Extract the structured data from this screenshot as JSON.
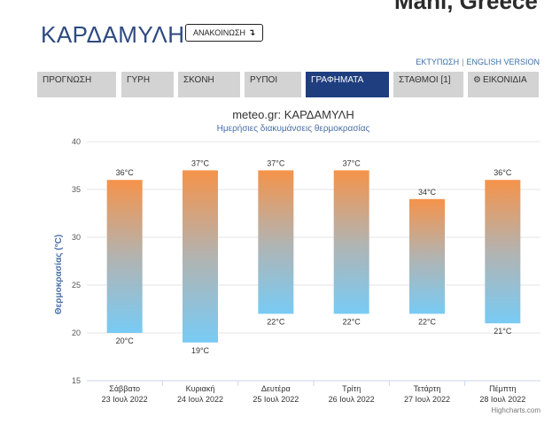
{
  "header": {
    "corner_text": "Mani, Greece",
    "title": "ΚΑΡΔΑΜΥΛΗ",
    "announce_label": "ΑΝΑΚΟΙΝΩΣΗ",
    "announce_icon": "return-arrow-icon",
    "print_link": "ΕΚΤΥΠΩΣΗ",
    "english_link": "ENGLISH VERSION"
  },
  "nav": {
    "tabs": [
      {
        "label": "ΠΡΟΓΝΩΣΗ",
        "active": false
      },
      {
        "label": "ΓΥΡΗ",
        "active": false
      },
      {
        "label": "ΣΚΟΝΗ",
        "active": false
      },
      {
        "label": "ΡΥΠΟΙ",
        "active": false
      },
      {
        "label": "ΓΡΑΦΗΜΑΤΑ",
        "active": true
      },
      {
        "label": "ΣΤΑΘΜΟΙ [1]",
        "active": false
      },
      {
        "label": "ΕΙΚΟΝΙΔΙΑ",
        "active": false,
        "icon": "gear-icon"
      }
    ]
  },
  "chart_data": {
    "type": "bar",
    "subtype": "columnrange",
    "title": "meteo.gr: ΚΑΡΔΑΜΥΛΗ",
    "subtitle": "Ημερήσιες διακυμάνσεις θερμοκρασίας",
    "ylabel": "Θερμοκρασίας (°C)",
    "ylim": [
      15,
      40
    ],
    "yticks": [
      "15",
      "20",
      "25",
      "30",
      "35",
      "40"
    ],
    "grid": true,
    "categories": [
      {
        "day": "Σάββατο",
        "date": "23 Ιουλ 2022"
      },
      {
        "day": "Κυριακή",
        "date": "24 Ιουλ 2022"
      },
      {
        "day": "Δευτέρα",
        "date": "25 Ιουλ 2022"
      },
      {
        "day": "Τρίτη",
        "date": "26 Ιουλ 2022"
      },
      {
        "day": "Τετάρτη",
        "date": "27 Ιουλ 2022"
      },
      {
        "day": "Πέμπτη",
        "date": "28 Ιουλ 2022"
      }
    ],
    "series": [
      {
        "low": [
          20,
          19,
          22,
          22,
          22,
          21
        ],
        "high": [
          36,
          37,
          37,
          37,
          34,
          36
        ]
      }
    ],
    "low_labels": [
      "20°C",
      "19°C",
      "22°C",
      "22°C",
      "22°C",
      "21°C"
    ],
    "high_labels": [
      "36°C",
      "37°C",
      "37°C",
      "37°C",
      "34°C",
      "36°C"
    ],
    "colors": {
      "top": "#f5934a",
      "middle": "#b3b3b0",
      "bottom": "#78cbf5",
      "title": "#333333",
      "subtitle": "#4a6fa5",
      "ylabel": "#4a6fa5"
    },
    "credits": "Highcharts.com"
  }
}
